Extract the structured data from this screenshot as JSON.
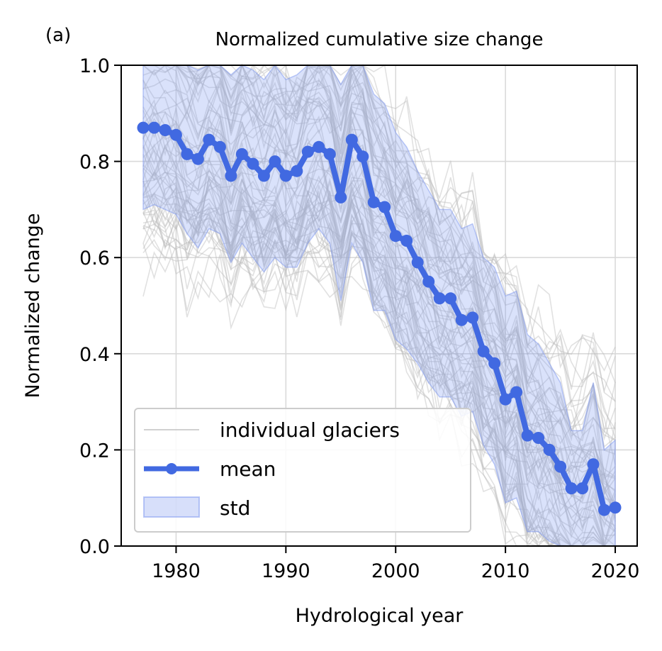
{
  "panel_label": "(a)",
  "chart_data": {
    "type": "line",
    "title": "Normalized cumulative size change",
    "xlabel": "Hydrological year",
    "ylabel": "Normalized change",
    "xlim": [
      1975,
      2022
    ],
    "ylim": [
      0,
      1
    ],
    "xticks": [
      1980,
      1990,
      2000,
      2010,
      2020
    ],
    "yticks": [
      0.0,
      0.2,
      0.4,
      0.6,
      0.8,
      1.0
    ],
    "xtick_labels": [
      "1980",
      "1990",
      "2000",
      "2010",
      "2020"
    ],
    "ytick_labels": [
      "0.0",
      "0.2",
      "0.4",
      "0.6",
      "0.8",
      "1.0"
    ],
    "grid": true,
    "legend_position": "lower-left",
    "legend": [
      "individual glaciers",
      "mean",
      "std"
    ],
    "colors": {
      "mean": "#4169e1",
      "std_fill": "#7b96f0",
      "individual": "#bdbdbd"
    },
    "series": [
      {
        "name": "mean",
        "x": [
          1977,
          1978,
          1979,
          1980,
          1981,
          1982,
          1983,
          1984,
          1985,
          1986,
          1987,
          1988,
          1989,
          1990,
          1991,
          1992,
          1993,
          1994,
          1995,
          1996,
          1997,
          1998,
          1999,
          2000,
          2001,
          2002,
          2003,
          2004,
          2005,
          2006,
          2007,
          2008,
          2009,
          2010,
          2011,
          2012,
          2013,
          2014,
          2015,
          2016,
          2017,
          2018,
          2019,
          2020
        ],
        "y": [
          0.87,
          0.87,
          0.865,
          0.855,
          0.815,
          0.805,
          0.845,
          0.83,
          0.77,
          0.815,
          0.795,
          0.77,
          0.8,
          0.77,
          0.78,
          0.82,
          0.83,
          0.815,
          0.725,
          0.845,
          0.81,
          0.715,
          0.705,
          0.645,
          0.635,
          0.59,
          0.55,
          0.515,
          0.515,
          0.47,
          0.475,
          0.405,
          0.38,
          0.305,
          0.32,
          0.23,
          0.225,
          0.2,
          0.165,
          0.12,
          0.12,
          0.17,
          0.075,
          0.08
        ]
      },
      {
        "name": "std",
        "x": [
          1977,
          1978,
          1979,
          1980,
          1981,
          1982,
          1983,
          1984,
          1985,
          1986,
          1987,
          1988,
          1989,
          1990,
          1991,
          1992,
          1993,
          1994,
          1995,
          1996,
          1997,
          1998,
          1999,
          2000,
          2001,
          2002,
          2003,
          2004,
          2005,
          2006,
          2007,
          2008,
          2009,
          2010,
          2011,
          2012,
          2013,
          2014,
          2015,
          2016,
          2017,
          2018,
          2019,
          2020
        ],
        "upper": [
          1.0,
          1.0,
          1.0,
          1.0,
          1.0,
          0.99,
          1.0,
          1.0,
          0.98,
          1.0,
          0.99,
          0.97,
          1.0,
          0.97,
          0.98,
          1.0,
          1.0,
          1.0,
          0.96,
          1.0,
          1.0,
          0.94,
          0.92,
          0.86,
          0.83,
          0.78,
          0.74,
          0.7,
          0.7,
          0.66,
          0.67,
          0.6,
          0.58,
          0.52,
          0.53,
          0.44,
          0.42,
          0.38,
          0.34,
          0.24,
          0.24,
          0.34,
          0.2,
          0.22
        ],
        "lower": [
          0.7,
          0.71,
          0.7,
          0.69,
          0.65,
          0.62,
          0.66,
          0.65,
          0.59,
          0.63,
          0.6,
          0.57,
          0.6,
          0.58,
          0.58,
          0.63,
          0.66,
          0.63,
          0.51,
          0.63,
          0.59,
          0.49,
          0.49,
          0.43,
          0.41,
          0.38,
          0.34,
          0.31,
          0.31,
          0.27,
          0.28,
          0.21,
          0.17,
          0.09,
          0.1,
          0.03,
          0.03,
          0.01,
          0.0,
          0.0,
          0.0,
          0.0,
          0.0,
          0.0
        ]
      }
    ]
  }
}
